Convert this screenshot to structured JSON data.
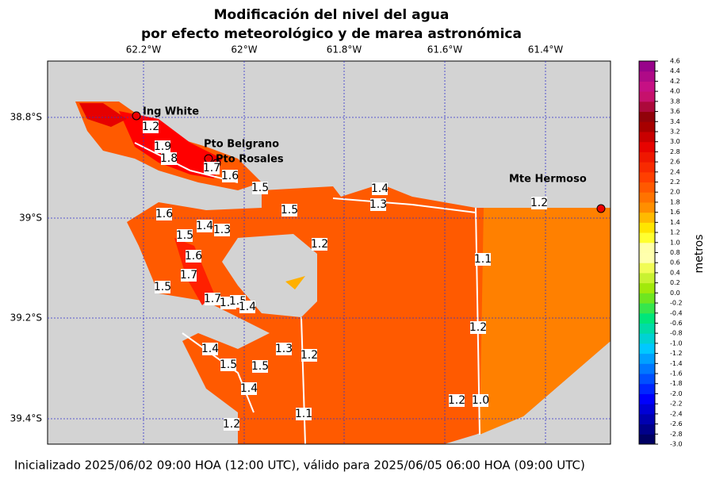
{
  "header": {
    "title_line1": "Modificación del nivel del agua",
    "title_line2": "por efecto meteorológico y de marea astronómica"
  },
  "map": {
    "x_ticks": [
      "62.2°W",
      "62°W",
      "61.8°W",
      "61.6°W",
      "61.4°W"
    ],
    "y_ticks": [
      "38.8°S",
      "39°S",
      "39.2°S",
      "39.4°S"
    ],
    "places": [
      "Ing White",
      "Pto Belgrano",
      "Pto Rosales",
      "Mte Hermoso"
    ],
    "contour_labels": [
      "1.2",
      "1.9",
      "1.8",
      "1.7",
      "1.6",
      "1.5",
      "1.4",
      "1.3",
      "1.2",
      "1.5",
      "1.6",
      "1.4",
      "1.3",
      "1.2",
      "1.5",
      "1.6",
      "1.7",
      "1.1",
      "1.5",
      "1.7",
      "1.6",
      "1.5",
      "1.4",
      "1.2",
      "1.3",
      "1.2",
      "1.4",
      "1.5",
      "1.5",
      "1.4",
      "1.2",
      "1.0",
      "1.1",
      "1.2"
    ]
  },
  "colorbar": {
    "label": "metros",
    "ticks": [
      "-3.0",
      "-2.8",
      "-2.6",
      "-2.4",
      "-2.2",
      "-2.0",
      "-1.8",
      "-1.6",
      "-1.4",
      "-1.2",
      "-1.0",
      "-0.8",
      "-0.6",
      "-0.4",
      "-0.2",
      "0.0",
      "0.2",
      "0.4",
      "0.6",
      "0.8",
      "1.0",
      "1.2",
      "1.4",
      "1.6",
      "1.8",
      "2.0",
      "2.2",
      "2.4",
      "2.6",
      "2.8",
      "3.0",
      "3.2",
      "3.4",
      "3.6",
      "3.8",
      "4.0",
      "4.2",
      "4.4",
      "4.6"
    ]
  },
  "footer": {
    "text": "Inicializado 2025/06/02 09:00 HOA (12:00 UTC), válido para 2025/06/05 06:00 HOA (09:00 UTC)"
  }
}
